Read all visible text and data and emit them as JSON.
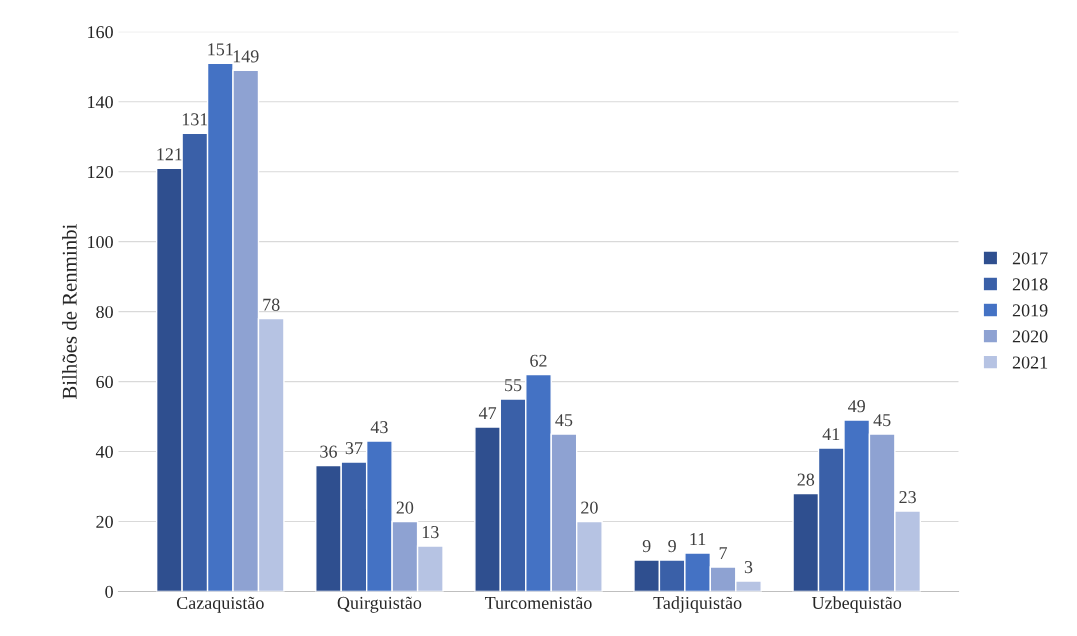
{
  "chart_data": {
    "type": "bar",
    "ylabel": "Bilhões de Renminbi",
    "categories": [
      "Cazaquistão",
      "Quirguistão",
      "Turcomenistão",
      "Tadjiquistão",
      "Uzbequistão"
    ],
    "series": [
      {
        "name": "2017",
        "color": "#2f4f8f",
        "values": [
          121,
          36,
          47,
          9,
          28
        ]
      },
      {
        "name": "2018",
        "color": "#3a60a8",
        "values": [
          131,
          37,
          55,
          9,
          41
        ]
      },
      {
        "name": "2019",
        "color": "#4472c4",
        "values": [
          151,
          43,
          62,
          11,
          49
        ]
      },
      {
        "name": "2020",
        "color": "#8ea2d2",
        "values": [
          149,
          20,
          45,
          7,
          45
        ]
      },
      {
        "name": "2021",
        "color": "#b6c3e3",
        "values": [
          78,
          13,
          20,
          3,
          23
        ]
      }
    ],
    "ylim": [
      0,
      160
    ],
    "yticks": [
      0,
      20,
      40,
      60,
      80,
      100,
      120,
      140,
      160
    ],
    "grid": "y",
    "legend": "right",
    "data_labels": true
  }
}
